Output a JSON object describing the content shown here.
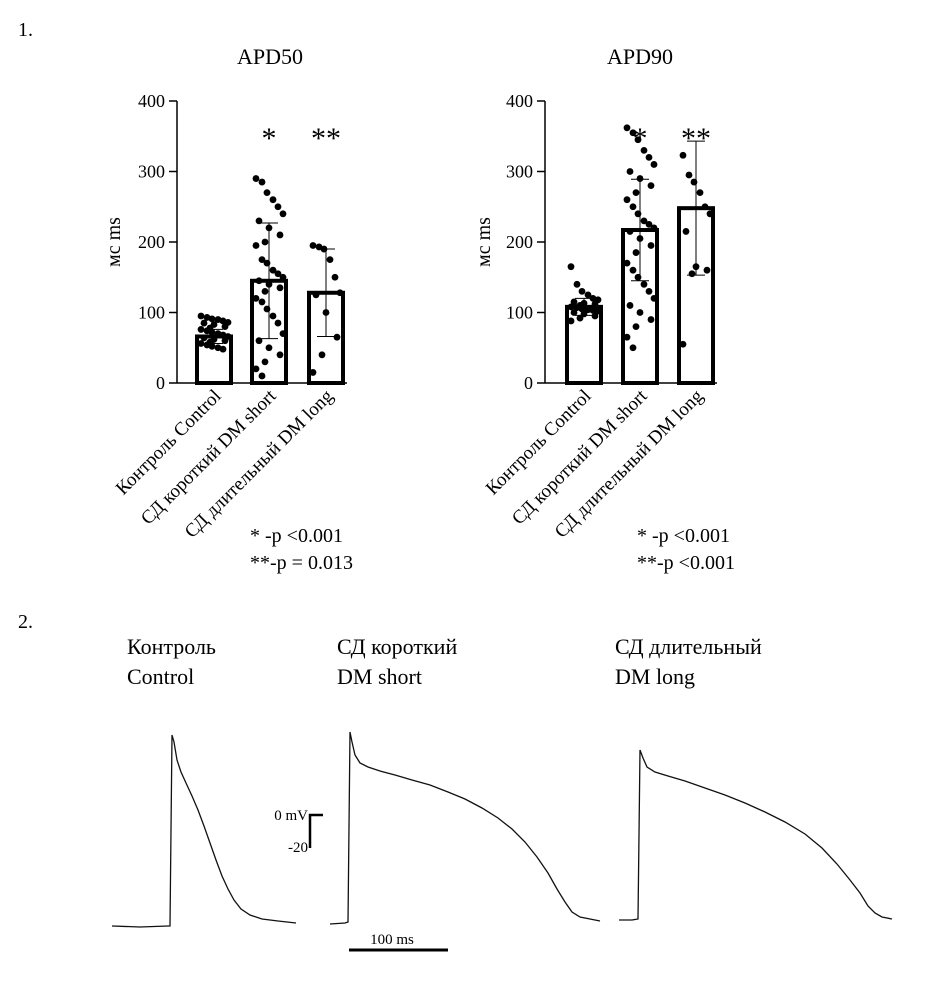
{
  "panel_labels": [
    "1.",
    "2."
  ],
  "chart_data": [
    {
      "type": "bar",
      "title": "APD50",
      "ylabel": "мс ms",
      "ylim": [
        0,
        400
      ],
      "yticks": [
        0,
        100,
        200,
        300,
        400
      ],
      "categories": [
        "Контроль Control",
        "СД короткий DM short",
        "СД длительный DM long"
      ],
      "values": [
        66,
        145,
        128
      ],
      "sd": [
        10,
        82,
        62
      ],
      "significance": [
        "",
        "*",
        "**"
      ],
      "points": [
        [
          95,
          93,
          91,
          90,
          88,
          86,
          85,
          83,
          80,
          78,
          76,
          74,
          72,
          70,
          68,
          66,
          64,
          62,
          60,
          58,
          56,
          54,
          52,
          50,
          48
        ],
        [
          290,
          285,
          270,
          260,
          250,
          240,
          230,
          220,
          210,
          200,
          195,
          175,
          170,
          160,
          155,
          150,
          145,
          140,
          135,
          130,
          120,
          115,
          105,
          95,
          85,
          70,
          60,
          50,
          40,
          30,
          20,
          10
        ],
        [
          195,
          193,
          190,
          175,
          150,
          128,
          125,
          100,
          65,
          40,
          15
        ]
      ],
      "footnotes": [
        "*  -p <0.001",
        "**-p = 0.013"
      ]
    },
    {
      "type": "bar",
      "title": "APD90",
      "ylabel": "мс ms",
      "ylim": [
        0,
        400
      ],
      "yticks": [
        0,
        100,
        200,
        300,
        400
      ],
      "categories": [
        "Контроль Control",
        "СД короткий DM short",
        "СД длительный DM long"
      ],
      "values": [
        108,
        217,
        248
      ],
      "sd": [
        12,
        72,
        95
      ],
      "significance": [
        "",
        "*",
        "**"
      ],
      "points": [
        [
          165,
          140,
          130,
          125,
          120,
          118,
          115,
          113,
          112,
          110,
          108,
          107,
          105,
          104,
          103,
          102,
          100,
          98,
          95,
          92,
          88
        ],
        [
          362,
          355,
          345,
          330,
          320,
          310,
          300,
          290,
          280,
          270,
          260,
          250,
          240,
          230,
          225,
          220,
          215,
          205,
          195,
          185,
          170,
          160,
          150,
          140,
          130,
          120,
          110,
          100,
          90,
          80,
          65,
          50
        ],
        [
          323,
          295,
          285,
          270,
          250,
          240,
          215,
          165,
          160,
          155,
          55
        ]
      ],
      "footnotes": [
        "*  -p <0.001",
        "**-p <0.001"
      ]
    }
  ],
  "traces": [
    {
      "title_line1": "Контроль",
      "title_line2": "Control"
    },
    {
      "title_line1": "СД короткий",
      "title_line2": "DM short"
    },
    {
      "title_line1": "СД длительный",
      "title_line2": "DM long"
    }
  ],
  "scalebar": {
    "voltage_top": "0 mV",
    "voltage_bottom": "-20",
    "time": "100 ms"
  }
}
